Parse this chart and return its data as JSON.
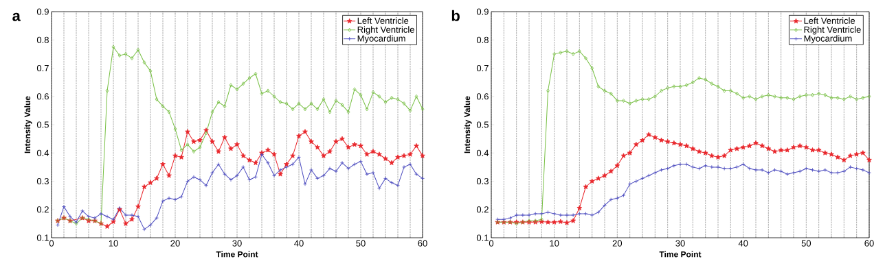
{
  "chart_data": [
    {
      "type": "line",
      "title": "a",
      "xlabel": "Time Point",
      "ylabel": "Intensity Value",
      "x": [
        1,
        2,
        3,
        4,
        5,
        6,
        7,
        8,
        9,
        10,
        11,
        12,
        13,
        14,
        15,
        16,
        17,
        18,
        19,
        20,
        21,
        22,
        23,
        24,
        25,
        26,
        27,
        28,
        29,
        30,
        31,
        32,
        33,
        34,
        35,
        36,
        37,
        38,
        39,
        40,
        41,
        42,
        43,
        44,
        45,
        46,
        47,
        48,
        49,
        50,
        51,
        52,
        53,
        54,
        55,
        56,
        57,
        58,
        59,
        60
      ],
      "series": [
        {
          "name": "Left Ventricle",
          "color": "#e8262b",
          "marker": "star",
          "values": [
            0.16,
            0.17,
            0.16,
            null,
            0.17,
            0.16,
            0.16,
            0.15,
            0.14,
            0.157,
            0.2,
            0.15,
            0.165,
            0.21,
            0.28,
            0.295,
            0.31,
            0.36,
            0.32,
            0.39,
            0.385,
            0.475,
            0.44,
            0.445,
            0.48,
            0.44,
            0.405,
            0.455,
            0.415,
            0.43,
            0.39,
            0.375,
            0.365,
            0.4,
            0.41,
            0.395,
            0.325,
            0.36,
            0.39,
            0.46,
            0.475,
            0.44,
            0.42,
            0.39,
            0.405,
            0.44,
            0.45,
            0.42,
            0.43,
            0.425,
            0.395,
            0.405,
            0.395,
            0.38,
            0.365,
            0.385,
            0.39,
            0.395,
            0.425,
            0.39
          ]
        },
        {
          "name": "Right Ventricle",
          "color": "#77bf43",
          "marker": "diamond",
          "values": [
            0.16,
            0.17,
            0.16,
            0.15,
            0.17,
            0.165,
            0.16,
            0.15,
            0.62,
            0.775,
            0.745,
            0.75,
            0.735,
            0.765,
            0.72,
            0.69,
            0.59,
            0.565,
            0.545,
            0.485,
            0.41,
            0.43,
            0.405,
            0.42,
            0.47,
            0.545,
            0.58,
            0.565,
            0.64,
            0.625,
            0.645,
            0.665,
            0.68,
            0.61,
            0.62,
            0.6,
            0.58,
            0.575,
            0.555,
            0.575,
            0.555,
            0.575,
            0.555,
            0.59,
            0.545,
            0.585,
            0.57,
            0.545,
            0.625,
            0.605,
            0.555,
            0.615,
            0.6,
            0.58,
            0.595,
            0.59,
            0.575,
            0.55,
            0.6,
            0.555
          ]
        },
        {
          "name": "Myocardium",
          "color": "#4b4bbf",
          "marker": "cross",
          "values": [
            0.145,
            0.21,
            0.175,
            0.155,
            0.195,
            0.175,
            0.17,
            0.185,
            0.175,
            0.165,
            0.205,
            0.18,
            0.18,
            0.175,
            0.13,
            0.145,
            0.17,
            0.23,
            0.24,
            0.235,
            0.245,
            0.3,
            0.315,
            0.305,
            0.285,
            0.33,
            0.36,
            0.325,
            0.305,
            0.32,
            0.35,
            0.305,
            0.315,
            0.395,
            0.365,
            0.32,
            0.34,
            0.35,
            0.36,
            0.385,
            0.29,
            0.34,
            0.31,
            0.32,
            0.345,
            0.335,
            0.365,
            0.345,
            0.36,
            0.37,
            0.325,
            0.33,
            0.275,
            0.31,
            0.295,
            0.285,
            0.35,
            0.36,
            0.325,
            0.31
          ]
        }
      ],
      "xlim": [
        0,
        60
      ],
      "ylim": [
        0.1,
        0.9
      ],
      "xticks": [
        0,
        {
          "value": 2,
          "label": null
        },
        {
          "value": 4,
          "label": null
        },
        {
          "value": 6,
          "label": null
        },
        {
          "value": 8,
          "label": null
        },
        10,
        {
          "value": 12,
          "label": null
        },
        {
          "value": 14,
          "label": null
        },
        {
          "value": 16,
          "label": null
        },
        {
          "value": 18,
          "label": null
        },
        20,
        {
          "value": 22,
          "label": null
        },
        {
          "value": 24,
          "label": null
        },
        {
          "value": 26,
          "label": null
        },
        {
          "value": 28,
          "label": null
        },
        30,
        {
          "value": 32,
          "label": null
        },
        {
          "value": 34,
          "label": null
        },
        {
          "value": 36,
          "label": null
        },
        {
          "value": 38,
          "label": null
        },
        40,
        {
          "value": 42,
          "label": null
        },
        {
          "value": 44,
          "label": null
        },
        {
          "value": 46,
          "label": null
        },
        {
          "value": 48,
          "label": null
        },
        50,
        {
          "value": 52,
          "label": null
        },
        {
          "value": 54,
          "label": null
        },
        {
          "value": 56,
          "label": null
        },
        {
          "value": 58,
          "label": null
        },
        60
      ],
      "yticks": [
        0.1,
        0.2,
        0.3,
        0.4,
        0.5,
        0.6,
        0.7,
        0.8,
        0.9
      ],
      "grid": "x",
      "legend": "top right"
    },
    {
      "type": "line",
      "title": "b",
      "xlabel": "Time Point",
      "ylabel": "Intensity Value",
      "x": [
        1,
        2,
        3,
        4,
        5,
        6,
        7,
        8,
        9,
        10,
        11,
        12,
        13,
        14,
        15,
        16,
        17,
        18,
        19,
        20,
        21,
        22,
        23,
        24,
        25,
        26,
        27,
        28,
        29,
        30,
        31,
        32,
        33,
        34,
        35,
        36,
        37,
        38,
        39,
        40,
        41,
        42,
        43,
        44,
        45,
        46,
        47,
        48,
        49,
        50,
        51,
        52,
        53,
        54,
        55,
        56,
        57,
        58,
        59,
        60
      ],
      "series": [
        {
          "name": "Left Ventricle",
          "color": "#e8262b",
          "marker": "star",
          "values": [
            0.155,
            0.155,
            0.155,
            0.155,
            0.155,
            0.155,
            0.155,
            0.157,
            0.155,
            0.155,
            0.157,
            0.153,
            0.16,
            0.205,
            0.28,
            0.3,
            0.31,
            0.32,
            0.335,
            0.355,
            0.39,
            0.4,
            0.43,
            0.445,
            0.465,
            0.455,
            0.445,
            0.44,
            0.435,
            0.43,
            0.425,
            0.415,
            0.405,
            0.4,
            0.39,
            0.385,
            0.39,
            0.41,
            0.415,
            0.42,
            0.425,
            0.435,
            0.425,
            0.415,
            0.405,
            0.41,
            0.41,
            0.42,
            0.425,
            0.42,
            0.41,
            0.41,
            0.4,
            0.395,
            0.385,
            0.375,
            0.39,
            0.395,
            0.4,
            0.375
          ]
        },
        {
          "name": "Right Ventricle",
          "color": "#77bf43",
          "marker": "diamond",
          "values": [
            0.155,
            0.155,
            0.155,
            0.15,
            0.155,
            0.16,
            0.16,
            0.165,
            0.62,
            0.75,
            0.755,
            0.76,
            0.75,
            0.76,
            0.735,
            0.7,
            0.635,
            0.62,
            0.61,
            0.585,
            0.585,
            0.575,
            0.585,
            0.59,
            0.59,
            0.6,
            0.62,
            0.63,
            0.635,
            0.635,
            0.64,
            0.65,
            0.665,
            0.66,
            0.645,
            0.635,
            0.62,
            0.62,
            0.61,
            0.595,
            0.6,
            0.59,
            0.6,
            0.605,
            0.6,
            0.595,
            0.595,
            0.59,
            0.6,
            0.605,
            0.605,
            0.61,
            0.605,
            0.595,
            0.595,
            0.59,
            0.6,
            0.59,
            0.595,
            0.6
          ]
        },
        {
          "name": "Myocardium",
          "color": "#4b4bbf",
          "marker": "cross",
          "values": [
            0.165,
            0.165,
            0.17,
            0.18,
            0.18,
            0.18,
            0.185,
            0.185,
            0.19,
            0.185,
            0.18,
            0.18,
            0.18,
            0.185,
            0.185,
            0.18,
            0.19,
            0.215,
            0.235,
            0.24,
            0.25,
            0.29,
            0.3,
            0.31,
            0.32,
            0.33,
            0.34,
            0.345,
            0.355,
            0.36,
            0.36,
            0.35,
            0.345,
            0.355,
            0.35,
            0.35,
            0.345,
            0.345,
            0.35,
            0.36,
            0.345,
            0.34,
            0.34,
            0.33,
            0.34,
            0.335,
            0.325,
            0.33,
            0.335,
            0.345,
            0.34,
            0.335,
            0.34,
            0.33,
            0.33,
            0.335,
            0.35,
            0.345,
            0.34,
            0.33
          ]
        }
      ],
      "xlim": [
        0,
        60
      ],
      "ylim": [
        0.1,
        0.9
      ],
      "xticks": [
        0,
        {
          "value": 2,
          "label": null
        },
        {
          "value": 4,
          "label": null
        },
        {
          "value": 6,
          "label": null
        },
        {
          "value": 8,
          "label": null
        },
        10,
        {
          "value": 12,
          "label": null
        },
        {
          "value": 14,
          "label": null
        },
        {
          "value": 16,
          "label": null
        },
        {
          "value": 18,
          "label": null
        },
        20,
        {
          "value": 22,
          "label": null
        },
        {
          "value": 24,
          "label": null
        },
        {
          "value": 26,
          "label": null
        },
        {
          "value": 28,
          "label": null
        },
        30,
        {
          "value": 32,
          "label": null
        },
        {
          "value": 34,
          "label": null
        },
        {
          "value": 36,
          "label": null
        },
        {
          "value": 38,
          "label": null
        },
        40,
        {
          "value": 42,
          "label": null
        },
        {
          "value": 44,
          "label": null
        },
        {
          "value": 46,
          "label": null
        },
        {
          "value": 48,
          "label": null
        },
        50,
        {
          "value": 52,
          "label": null
        },
        {
          "value": 54,
          "label": null
        },
        {
          "value": 56,
          "label": null
        },
        {
          "value": 58,
          "label": null
        },
        60
      ],
      "yticks": [
        0.1,
        0.2,
        0.3,
        0.4,
        0.5,
        0.6,
        0.7,
        0.8,
        0.9
      ],
      "grid": "x",
      "legend": "top right"
    }
  ]
}
